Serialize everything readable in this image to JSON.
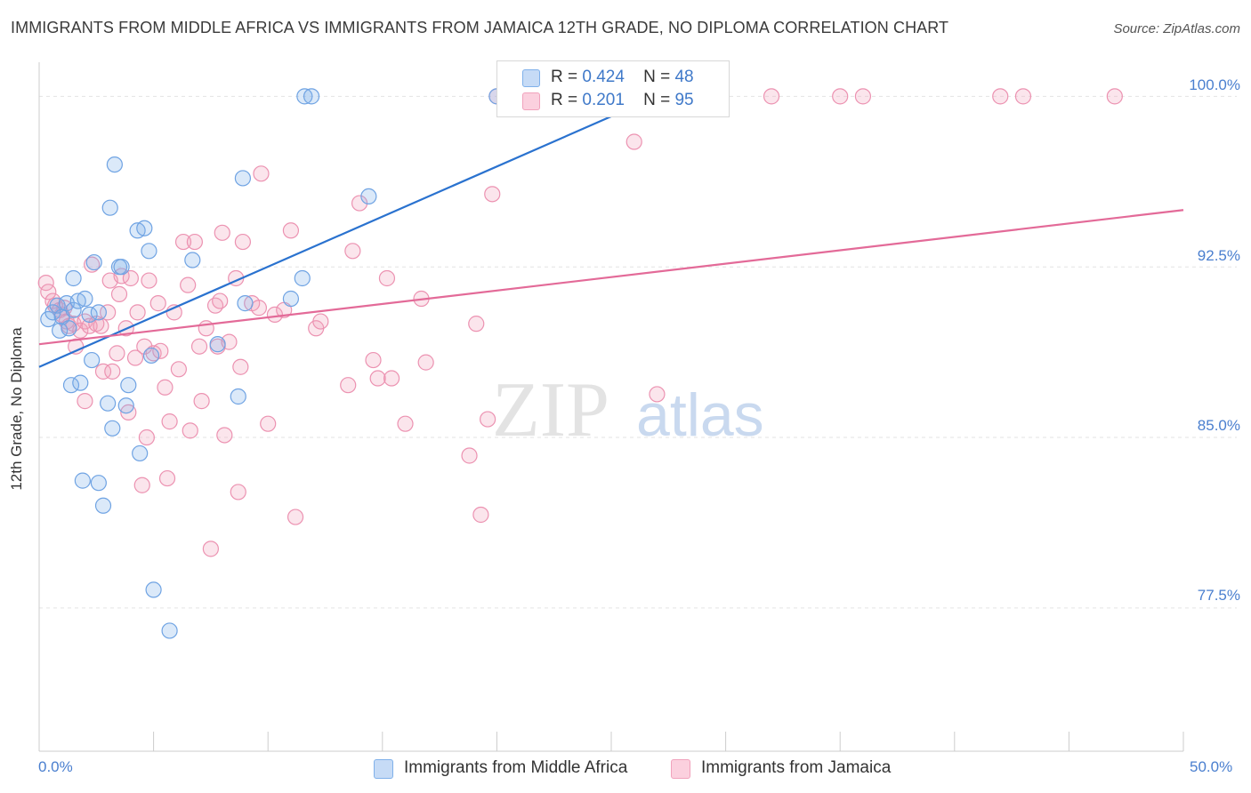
{
  "title": "IMMIGRANTS FROM MIDDLE AFRICA VS IMMIGRANTS FROM JAMAICA 12TH GRADE, NO DIPLOMA CORRELATION CHART",
  "source": "Source: ZipAtlas.com",
  "watermark": "ZIPatlas",
  "legend_box": [
    {
      "r_label": "R =",
      "r_value": "0.424",
      "n_label": "N =",
      "n_value": "48"
    },
    {
      "r_label": "R =",
      "r_value": "0.201",
      "n_label": "N =",
      "n_value": "95"
    }
  ],
  "chart_data": {
    "type": "scatter",
    "title": "IMMIGRANTS FROM MIDDLE AFRICA VS IMMIGRANTS FROM JAMAICA 12TH GRADE, NO DIPLOMA CORRELATION CHART",
    "xlabel": "",
    "ylabel": "12th Grade, No Diploma",
    "xlim": [
      0,
      50
    ],
    "ylim": [
      71.2,
      101.5
    ],
    "x_tick_labels": [
      "0.0%",
      "50.0%"
    ],
    "y_ticks": [
      77.5,
      85.0,
      92.5,
      100.0
    ],
    "y_tick_labels": [
      "77.5%",
      "85.0%",
      "92.5%",
      "100.0%"
    ],
    "grid": true,
    "legend_position": "bottom",
    "series": [
      {
        "name": "Immigrants from Middle Africa",
        "color": "#7fb0ea",
        "R": 0.424,
        "N": 48,
        "trend": {
          "x0": 0.0,
          "y0": 88.1,
          "x1": 27.0,
          "y1": 100.0
        },
        "points": [
          [
            0.4,
            90.2
          ],
          [
            0.6,
            90.5
          ],
          [
            0.8,
            90.8
          ],
          [
            0.9,
            89.7
          ],
          [
            1.0,
            90.3
          ],
          [
            1.2,
            90.9
          ],
          [
            1.3,
            89.8
          ],
          [
            1.5,
            90.6
          ],
          [
            1.4,
            87.3
          ],
          [
            1.7,
            91.0
          ],
          [
            1.5,
            92.0
          ],
          [
            1.8,
            87.4
          ],
          [
            1.9,
            83.1
          ],
          [
            2.0,
            91.1
          ],
          [
            2.2,
            90.4
          ],
          [
            2.3,
            88.4
          ],
          [
            2.4,
            92.7
          ],
          [
            2.6,
            90.5
          ],
          [
            2.6,
            83.0
          ],
          [
            2.8,
            82.0
          ],
          [
            3.0,
            86.5
          ],
          [
            3.1,
            95.1
          ],
          [
            3.2,
            85.4
          ],
          [
            3.3,
            97.0
          ],
          [
            3.5,
            92.5
          ],
          [
            3.6,
            92.5
          ],
          [
            3.8,
            86.4
          ],
          [
            3.9,
            87.3
          ],
          [
            4.3,
            94.1
          ],
          [
            4.4,
            84.3
          ],
          [
            4.6,
            94.2
          ],
          [
            4.8,
            93.2
          ],
          [
            4.9,
            88.6
          ],
          [
            5.0,
            78.3
          ],
          [
            5.7,
            76.5
          ],
          [
            6.7,
            92.8
          ],
          [
            7.8,
            89.1
          ],
          [
            8.7,
            86.8
          ],
          [
            8.9,
            96.4
          ],
          [
            9.0,
            90.9
          ],
          [
            11.0,
            91.1
          ],
          [
            11.5,
            92.0
          ],
          [
            11.6,
            100.0
          ],
          [
            11.9,
            100.0
          ],
          [
            14.4,
            95.6
          ],
          [
            20.0,
            100.0
          ],
          [
            25.0,
            100.0
          ],
          [
            26.0,
            100.0
          ]
        ]
      },
      {
        "name": "Immigrants from Jamaica",
        "color": "#f1a2bc",
        "R": 0.201,
        "N": 95,
        "trend": {
          "x0": 0.0,
          "y0": 89.1,
          "x1": 50.0,
          "y1": 95.0
        },
        "points": [
          [
            0.3,
            91.8
          ],
          [
            0.4,
            91.4
          ],
          [
            0.6,
            91.0
          ],
          [
            0.7,
            90.8
          ],
          [
            0.9,
            90.6
          ],
          [
            1.0,
            90.4
          ],
          [
            1.1,
            90.7
          ],
          [
            1.2,
            90.1
          ],
          [
            1.3,
            89.9
          ],
          [
            1.5,
            90.0
          ],
          [
            1.6,
            89.0
          ],
          [
            1.8,
            89.7
          ],
          [
            2.0,
            90.1
          ],
          [
            2.0,
            86.6
          ],
          [
            2.2,
            89.9
          ],
          [
            2.3,
            92.6
          ],
          [
            2.5,
            90.0
          ],
          [
            2.7,
            89.9
          ],
          [
            2.8,
            87.9
          ],
          [
            3.0,
            90.5
          ],
          [
            3.1,
            91.9
          ],
          [
            3.2,
            87.9
          ],
          [
            3.4,
            88.7
          ],
          [
            3.5,
            91.3
          ],
          [
            3.6,
            92.1
          ],
          [
            3.8,
            89.8
          ],
          [
            3.9,
            86.1
          ],
          [
            4.0,
            92.0
          ],
          [
            4.2,
            88.5
          ],
          [
            4.3,
            90.5
          ],
          [
            4.5,
            82.9
          ],
          [
            4.6,
            89.0
          ],
          [
            4.7,
            85.0
          ],
          [
            4.8,
            91.9
          ],
          [
            5.0,
            88.7
          ],
          [
            5.2,
            90.9
          ],
          [
            5.3,
            88.8
          ],
          [
            5.5,
            87.2
          ],
          [
            5.6,
            83.2
          ],
          [
            5.7,
            85.7
          ],
          [
            5.9,
            90.5
          ],
          [
            6.1,
            88.0
          ],
          [
            6.3,
            93.6
          ],
          [
            6.5,
            91.7
          ],
          [
            6.6,
            85.3
          ],
          [
            6.8,
            93.6
          ],
          [
            7.0,
            89.0
          ],
          [
            7.1,
            86.6
          ],
          [
            7.3,
            89.8
          ],
          [
            7.5,
            80.1
          ],
          [
            7.7,
            90.8
          ],
          [
            7.8,
            89.0
          ],
          [
            7.9,
            91.0
          ],
          [
            8.0,
            94.0
          ],
          [
            8.1,
            85.1
          ],
          [
            8.3,
            89.2
          ],
          [
            8.6,
            92.0
          ],
          [
            8.7,
            82.6
          ],
          [
            8.8,
            88.1
          ],
          [
            8.9,
            93.6
          ],
          [
            9.3,
            90.9
          ],
          [
            9.6,
            90.7
          ],
          [
            9.7,
            96.6
          ],
          [
            10.0,
            85.6
          ],
          [
            10.3,
            90.4
          ],
          [
            10.7,
            90.6
          ],
          [
            11.0,
            94.1
          ],
          [
            11.2,
            81.5
          ],
          [
            12.1,
            89.8
          ],
          [
            12.3,
            90.1
          ],
          [
            13.5,
            87.3
          ],
          [
            13.7,
            93.2
          ],
          [
            14.0,
            95.3
          ],
          [
            14.6,
            88.4
          ],
          [
            14.8,
            87.6
          ],
          [
            15.2,
            92.0
          ],
          [
            15.4,
            87.6
          ],
          [
            16.0,
            85.6
          ],
          [
            16.7,
            91.1
          ],
          [
            16.9,
            88.3
          ],
          [
            18.8,
            84.2
          ],
          [
            19.1,
            90.0
          ],
          [
            19.3,
            81.6
          ],
          [
            19.6,
            85.8
          ],
          [
            19.8,
            95.7
          ],
          [
            20.0,
            100.0
          ],
          [
            25.0,
            100.0
          ],
          [
            26.0,
            98.0
          ],
          [
            27.0,
            86.9
          ],
          [
            32.0,
            100.0
          ],
          [
            35.0,
            100.0
          ],
          [
            36.0,
            100.0
          ],
          [
            42.0,
            100.0
          ],
          [
            47.0,
            100.0
          ],
          [
            43.0,
            100.0
          ]
        ]
      }
    ]
  }
}
